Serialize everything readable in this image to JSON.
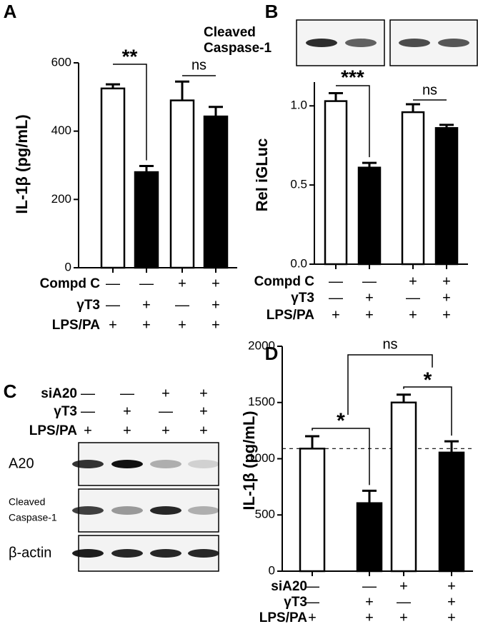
{
  "chart_data": [
    {
      "type": "bar",
      "panel": "A",
      "ylabel": "IL-1β (pg/mL)",
      "ylim": [
        0,
        600
      ],
      "yticks": [
        0,
        200,
        400,
        600
      ],
      "values": [
        525,
        280,
        490,
        443
      ],
      "errors": [
        12,
        18,
        55,
        28
      ],
      "colors": [
        "#ffffff",
        "#000000",
        "#ffffff",
        "#000000"
      ],
      "annotations": [
        "**",
        "ns"
      ],
      "conditions": [
        {
          "label": "Compd C",
          "marks": [
            "—",
            "—",
            "+",
            "+"
          ]
        },
        {
          "label": "γT3",
          "marks": [
            "—",
            "+",
            "—",
            "+"
          ]
        },
        {
          "label": "LPS/PA",
          "marks": [
            "+",
            "+",
            "+",
            "+"
          ]
        }
      ]
    },
    {
      "type": "bar",
      "panel": "B",
      "ylabel": "Rel iGLuc",
      "ylim": [
        0,
        1.15
      ],
      "yticks": [
        {
          "value": 0,
          "label": "0.0"
        },
        {
          "value": 0.5,
          "label": "0.5"
        },
        {
          "value": 1,
          "label": "1.0"
        }
      ],
      "values": [
        1.03,
        0.61,
        0.96,
        0.86
      ],
      "errors": [
        0.05,
        0.03,
        0.05,
        0.02
      ],
      "colors": [
        "#ffffff",
        "#000000",
        "#ffffff",
        "#000000"
      ],
      "annotations": [
        "***",
        "ns"
      ],
      "blot_label": [
        "Cleaved",
        "Caspase-1"
      ],
      "conditions": [
        {
          "label": "Compd C",
          "marks": [
            "—",
            "—",
            "+",
            "+"
          ]
        },
        {
          "label": "γT3",
          "marks": [
            "—",
            "+",
            "—",
            "+"
          ]
        },
        {
          "label": "LPS/PA",
          "marks": [
            "+",
            "+",
            "+",
            "+"
          ]
        }
      ]
    },
    {
      "type": "blot",
      "panel": "C",
      "rows": [
        "A20",
        [
          "Cleaved",
          "Caspase-1"
        ],
        "β-actin"
      ],
      "conditions": [
        {
          "label": "siA20",
          "marks": [
            "—",
            "—",
            "+",
            "+"
          ]
        },
        {
          "label": "γT3",
          "marks": [
            "—",
            "+",
            "—",
            "+"
          ]
        },
        {
          "label": "LPS/PA",
          "marks": [
            "+",
            "+",
            "+",
            "+"
          ]
        }
      ]
    },
    {
      "type": "bar",
      "panel": "D",
      "ylabel": "IL-1β (pg/mL)",
      "ylim": [
        0,
        2000
      ],
      "yticks": [
        0,
        500,
        1000,
        1500,
        2000
      ],
      "values": [
        1090,
        605,
        1500,
        1055
      ],
      "errors": [
        110,
        110,
        70,
        100
      ],
      "colors": [
        "#ffffff",
        "#000000",
        "#ffffff",
        "#000000"
      ],
      "annotations": [
        "*",
        "*",
        "ns"
      ],
      "conditions": [
        {
          "label": "siA20",
          "marks": [
            "—",
            "—",
            "+",
            "+"
          ]
        },
        {
          "label": "γT3",
          "marks": [
            "—",
            "+",
            "—",
            "+"
          ]
        },
        {
          "label": "LPS/PA",
          "marks": [
            "+",
            "+",
            "+",
            "+"
          ]
        }
      ]
    }
  ]
}
